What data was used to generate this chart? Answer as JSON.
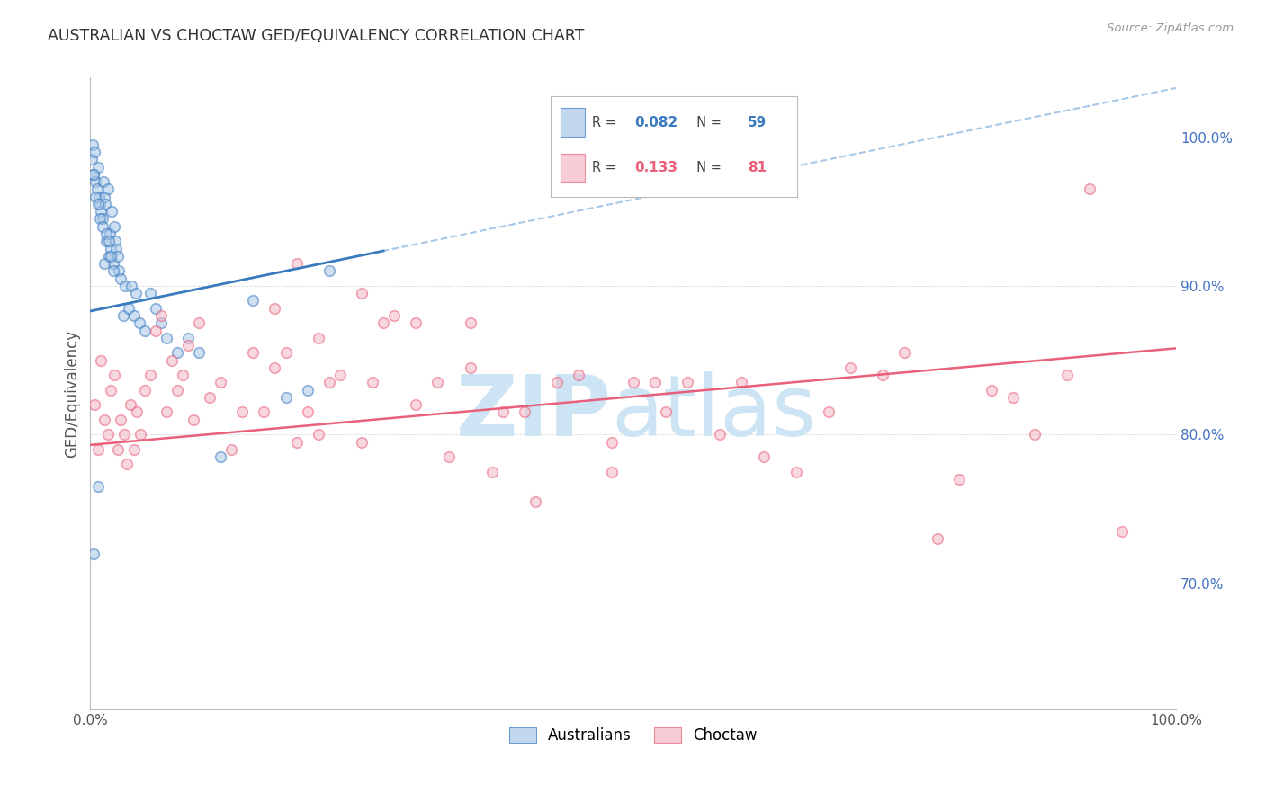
{
  "title": "AUSTRALIAN VS CHOCTAW GED/EQUIVALENCY CORRELATION CHART",
  "source": "Source: ZipAtlas.com",
  "ylabel": "GED/Equivalency",
  "xlim": [
    0.0,
    1.0
  ],
  "ylim": [
    0.615,
    1.04
  ],
  "y_tick_labels": [
    "70.0%",
    "80.0%",
    "90.0%",
    "100.0%"
  ],
  "y_tick_positions": [
    0.7,
    0.8,
    0.9,
    1.0
  ],
  "australian_color": "#a8c8e8",
  "choctaw_color": "#f4b8c8",
  "australian_line_color": "#3a7abf",
  "choctaw_line_color": "#e8607a",
  "dashed_line_color": "#a8c8e8",
  "marker_size": 70,
  "marker_alpha": 0.55,
  "background_color": "#ffffff",
  "watermark_color": "#cce4f4",
  "grid_color": "#cccccc",
  "aus_R": "0.082",
  "aus_N": "59",
  "cho_R": "0.133",
  "cho_N": "81",
  "aus_slope": 0.15,
  "aus_intercept": 0.883,
  "cho_slope": 0.065,
  "cho_intercept": 0.793,
  "australian_x": [
    0.001,
    0.002,
    0.003,
    0.004,
    0.005,
    0.006,
    0.007,
    0.008,
    0.009,
    0.01,
    0.011,
    0.012,
    0.013,
    0.014,
    0.015,
    0.016,
    0.017,
    0.018,
    0.019,
    0.02,
    0.021,
    0.022,
    0.023,
    0.024,
    0.025,
    0.026,
    0.028,
    0.03,
    0.032,
    0.035,
    0.038,
    0.04,
    0.042,
    0.045,
    0.05,
    0.055,
    0.06,
    0.065,
    0.07,
    0.08,
    0.09,
    0.1,
    0.12,
    0.15,
    0.18,
    0.2,
    0.22,
    0.003,
    0.005,
    0.007,
    0.009,
    0.011,
    0.013,
    0.015,
    0.017,
    0.019,
    0.021,
    0.003,
    0.007
  ],
  "australian_y": [
    0.985,
    0.995,
    0.975,
    0.99,
    0.97,
    0.965,
    0.98,
    0.96,
    0.955,
    0.95,
    0.945,
    0.97,
    0.96,
    0.955,
    0.93,
    0.965,
    0.92,
    0.935,
    0.925,
    0.95,
    0.915,
    0.94,
    0.93,
    0.925,
    0.92,
    0.91,
    0.905,
    0.88,
    0.9,
    0.885,
    0.9,
    0.88,
    0.895,
    0.875,
    0.87,
    0.895,
    0.885,
    0.875,
    0.865,
    0.855,
    0.865,
    0.855,
    0.785,
    0.89,
    0.825,
    0.83,
    0.91,
    0.975,
    0.96,
    0.955,
    0.945,
    0.94,
    0.915,
    0.935,
    0.93,
    0.92,
    0.91,
    0.72,
    0.765
  ],
  "choctaw_x": [
    0.004,
    0.007,
    0.01,
    0.013,
    0.016,
    0.019,
    0.022,
    0.025,
    0.028,
    0.031,
    0.034,
    0.037,
    0.04,
    0.043,
    0.046,
    0.05,
    0.055,
    0.06,
    0.065,
    0.07,
    0.075,
    0.08,
    0.085,
    0.09,
    0.095,
    0.1,
    0.11,
    0.12,
    0.13,
    0.14,
    0.15,
    0.16,
    0.17,
    0.18,
    0.19,
    0.2,
    0.21,
    0.22,
    0.23,
    0.25,
    0.27,
    0.3,
    0.33,
    0.35,
    0.38,
    0.4,
    0.43,
    0.45,
    0.48,
    0.5,
    0.53,
    0.55,
    0.58,
    0.6,
    0.62,
    0.65,
    0.68,
    0.7,
    0.73,
    0.75,
    0.78,
    0.8,
    0.83,
    0.85,
    0.87,
    0.9,
    0.92,
    0.95,
    0.25,
    0.3,
    0.35,
    0.17,
    0.19,
    0.21,
    0.26,
    0.28,
    0.32,
    0.37,
    0.41,
    0.48,
    0.52
  ],
  "choctaw_y": [
    0.82,
    0.79,
    0.85,
    0.81,
    0.8,
    0.83,
    0.84,
    0.79,
    0.81,
    0.8,
    0.78,
    0.82,
    0.79,
    0.815,
    0.8,
    0.83,
    0.84,
    0.87,
    0.88,
    0.815,
    0.85,
    0.83,
    0.84,
    0.86,
    0.81,
    0.875,
    0.825,
    0.835,
    0.79,
    0.815,
    0.855,
    0.815,
    0.845,
    0.855,
    0.795,
    0.815,
    0.8,
    0.835,
    0.84,
    0.795,
    0.875,
    0.82,
    0.785,
    0.845,
    0.815,
    0.815,
    0.835,
    0.84,
    0.795,
    0.835,
    0.815,
    0.835,
    0.8,
    0.835,
    0.785,
    0.775,
    0.815,
    0.845,
    0.84,
    0.855,
    0.73,
    0.77,
    0.83,
    0.825,
    0.8,
    0.84,
    0.965,
    0.735,
    0.895,
    0.875,
    0.875,
    0.885,
    0.915,
    0.865,
    0.835,
    0.88,
    0.835,
    0.775,
    0.755,
    0.775,
    0.835
  ]
}
